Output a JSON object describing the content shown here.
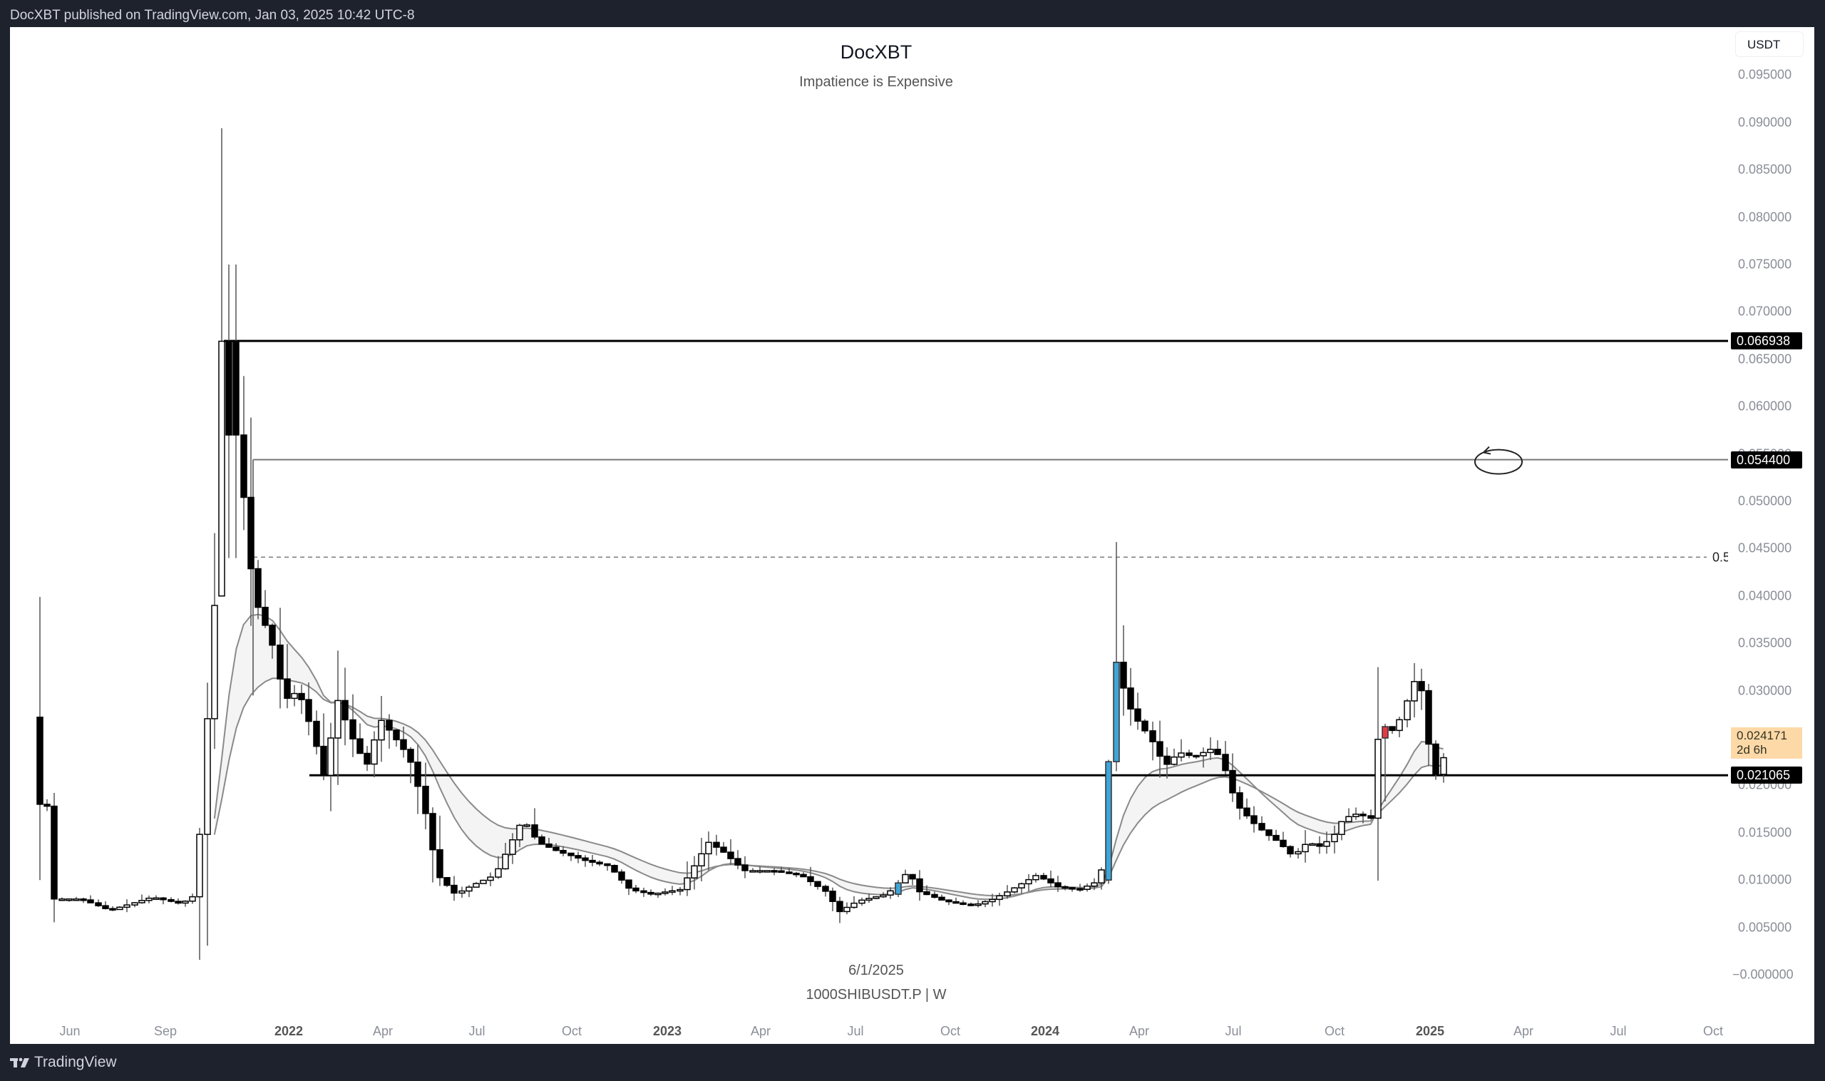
{
  "header": {
    "published_text": "DocXBT published on TradingView.com, Jan 03, 2025 10:42 UTC-8"
  },
  "chart": {
    "title": "DocXBT",
    "subtitle": "Impatience is Expensive",
    "date_label": "6/1/2025",
    "symbol_label": "1000SHIBUSDT.P | W",
    "currency": "USDT"
  },
  "footer": {
    "brand": "TradingView"
  },
  "price_axis": {
    "ticks": [
      "0.095000",
      "0.090000",
      "0.085000",
      "0.080000",
      "0.075000",
      "0.070000",
      "0.065000",
      "0.060000",
      "0.055000",
      "0.050000",
      "0.045000",
      "0.040000",
      "0.035000",
      "0.030000",
      "0.025000",
      "0.020000",
      "0.015000",
      "0.010000",
      "0.005000",
      "−0.000000"
    ],
    "labels": {
      "level_top": "0.066938",
      "level_mid": "0.054400",
      "level_support": "0.021065",
      "last_price": "0.024171",
      "countdown": "2d 6h"
    }
  },
  "fib_label": "0.5",
  "time_axis": {
    "ticks": [
      {
        "label": "Jun",
        "year": false
      },
      {
        "label": "Sep",
        "year": false
      },
      {
        "label": "2022",
        "year": true
      },
      {
        "label": "Apr",
        "year": false
      },
      {
        "label": "Jul",
        "year": false
      },
      {
        "label": "Oct",
        "year": false
      },
      {
        "label": "2023",
        "year": true
      },
      {
        "label": "Apr",
        "year": false
      },
      {
        "label": "Jul",
        "year": false
      },
      {
        "label": "Oct",
        "year": false
      },
      {
        "label": "2024",
        "year": true
      },
      {
        "label": "Apr",
        "year": false
      },
      {
        "label": "Jul",
        "year": false
      },
      {
        "label": "Oct",
        "year": false
      },
      {
        "label": "2025",
        "year": true
      },
      {
        "label": "Apr",
        "year": false
      },
      {
        "label": "Jul",
        "year": false
      },
      {
        "label": "Oct",
        "year": false
      }
    ]
  },
  "colors": {
    "up": "#ffffff",
    "down": "#000000",
    "highlight": "#3fa5d8",
    "red_candle": "#e53945",
    "ma": "#8a8a8a",
    "bg_dark": "#1e222d",
    "last_price_bg": "#fdd9a8"
  },
  "chart_data": {
    "type": "candlestick",
    "title": "DocXBT — Impatience is Expensive",
    "symbol": "1000SHIBUSDT.P",
    "interval": "W",
    "ylim": [
      0,
      0.097
    ],
    "x_range": [
      "2021-05",
      "2025-10"
    ],
    "horizontal_levels": [
      {
        "value": 0.066938,
        "style": "solid-thick"
      },
      {
        "value": 0.0544,
        "style": "solid-thin",
        "annotation": "hand-drawn circle"
      },
      {
        "value": 0.0441,
        "style": "dashed",
        "label": "0.5"
      },
      {
        "value": 0.021065,
        "style": "solid-thick"
      }
    ],
    "last_price": 0.024171,
    "bar_countdown": "2d 6h",
    "key_points": [
      {
        "date": "2021-05",
        "high": 0.0399,
        "open": 0.0272,
        "close": 0.0179
      },
      {
        "date": "2021-10 (peak)",
        "high": 0.0894,
        "close": 0.0669
      },
      {
        "date": "2022-06 low",
        "low": 0.0075
      },
      {
        "date": "2023-06 low",
        "low": 0.0048
      },
      {
        "date": "2024-03 spike",
        "high": 0.0457,
        "close": 0.033
      },
      {
        "date": "2024-08 low",
        "low": 0.0108
      },
      {
        "date": "2024-12 high",
        "high": 0.0335
      },
      {
        "date": "2025-01 (current)",
        "close": 0.024171
      }
    ],
    "moving_averages": 2
  }
}
